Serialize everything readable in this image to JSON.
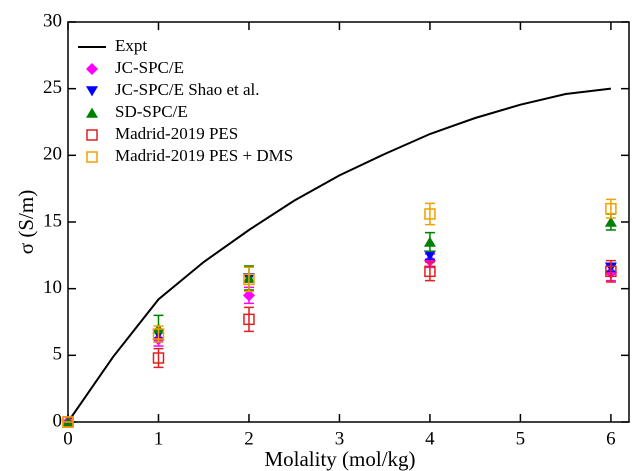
{
  "chart_data": {
    "type": "scatter",
    "x_label": "Molality (mol/kg)",
    "y_label": "σ (S/m)",
    "xlim": [
      0,
      6.2
    ],
    "xticks": [
      0,
      1,
      2,
      3,
      4,
      5,
      6
    ],
    "ylim": [
      0,
      30
    ],
    "yticks": [
      0,
      5,
      10,
      15,
      20,
      25,
      30
    ],
    "grid": false,
    "legend": "upper left",
    "series": [
      {
        "name": "Expt",
        "color": "#000000",
        "marker": "line",
        "x": [
          0,
          0.5,
          1,
          1.5,
          2,
          2.5,
          3,
          3.5,
          4,
          4.5,
          5,
          5.5,
          6
        ],
        "values": [
          0,
          4.9,
          9.2,
          12.0,
          14.4,
          16.6,
          18.5,
          20.1,
          21.6,
          22.8,
          23.8,
          24.6,
          25.0
        ]
      },
      {
        "name": "JC-SPC/E",
        "color": "#ff00ff",
        "marker": "diamond",
        "x": [
          0,
          1,
          2,
          4,
          6
        ],
        "values": [
          0,
          6.2,
          9.5,
          12.1,
          11.2
        ],
        "errors": [
          0,
          0.5,
          0.6,
          0.5,
          0.6
        ]
      },
      {
        "name": "JC-SPC/E Shao et al.",
        "color": "#0000ff",
        "marker": "triangle-down",
        "x": [
          1,
          2,
          4,
          6
        ],
        "values": [
          6.6,
          10.8,
          12.5,
          11.6
        ],
        "errors": [
          0.3,
          0.3,
          0.3,
          0.3
        ]
      },
      {
        "name": "SD-SPC/E",
        "color": "#008000",
        "marker": "triangle-up",
        "x": [
          0,
          1,
          2,
          4,
          6
        ],
        "values": [
          0,
          7.0,
          10.8,
          13.5,
          15.0
        ],
        "errors": [
          0,
          1.0,
          0.9,
          0.7,
          0.6
        ]
      },
      {
        "name": "Madrid-2019 PES",
        "color": "#e02020",
        "marker": "square",
        "x": [
          0,
          1,
          2,
          4,
          6
        ],
        "values": [
          0,
          4.8,
          7.7,
          11.3,
          11.3
        ],
        "errors": [
          0,
          0.7,
          0.9,
          0.7,
          0.8
        ]
      },
      {
        "name": "Madrid-2019 PES + DMS",
        "color": "#f0a000",
        "marker": "square",
        "x": [
          0,
          1,
          2,
          4,
          6
        ],
        "values": [
          0,
          6.6,
          10.7,
          15.6,
          16.0
        ],
        "errors": [
          0,
          0.6,
          0.9,
          0.8,
          0.7
        ]
      }
    ]
  }
}
